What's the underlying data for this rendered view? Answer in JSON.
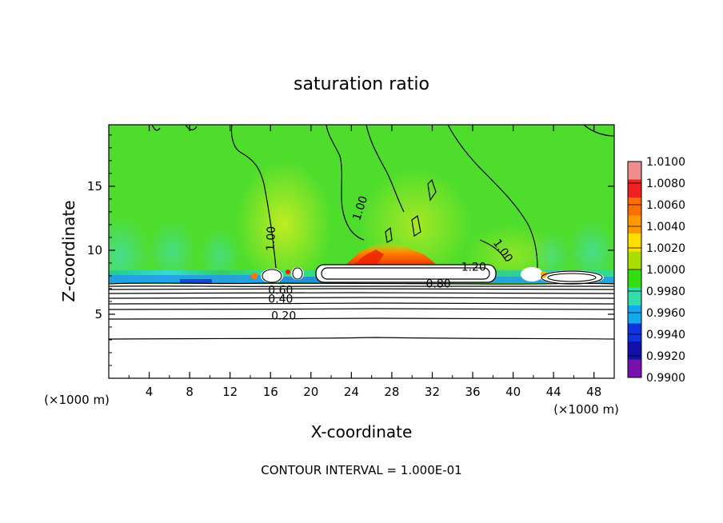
{
  "chart_data": {
    "type": "heatmap",
    "title": "saturation ratio",
    "xlabel": "X-coordinate",
    "ylabel": "Z-coordinate",
    "x_units_left": "(×1000 m)",
    "x_units_right": "(×1000 m)",
    "footer": "CONTOUR INTERVAL = 1.000E-01",
    "xlim": [
      0,
      50
    ],
    "ylim": [
      0,
      19.8
    ],
    "x_ticks": [
      4,
      8,
      12,
      16,
      20,
      24,
      28,
      32,
      36,
      40,
      44,
      48
    ],
    "y_ticks": [
      5,
      10,
      15
    ],
    "colorbar": {
      "ticks": [
        "1.0100",
        "1.0080",
        "1.0060",
        "1.0040",
        "1.0020",
        "1.0000",
        "0.9980",
        "0.9960",
        "0.9940",
        "0.9920",
        "0.9900"
      ],
      "colors": [
        "#f08c8c",
        "#ee2222",
        "#ff6e00",
        "#ff9900",
        "#ffdd00",
        "#aadd00",
        "#33dd11",
        "#33ddaa",
        "#11aaee",
        "#1133dd",
        "#1111aa",
        "#7711aa"
      ]
    },
    "contour_labels": [
      {
        "text": "1.00",
        "x": 16.4,
        "y": 10.9,
        "rot": -88
      },
      {
        "text": "1.00",
        "x": 25.2,
        "y": 13.2,
        "rot": -72
      },
      {
        "text": "1.00",
        "x": 38.7,
        "y": 9.8,
        "rot": 55
      },
      {
        "text": "1.20",
        "x": 36.1,
        "y": 8.4,
        "rot": 0
      },
      {
        "text": "0.80",
        "x": 32.6,
        "y": 7.1,
        "rot": 0
      },
      {
        "text": "0.60",
        "x": 17.0,
        "y": 6.6,
        "rot": 0
      },
      {
        "text": "0.40",
        "x": 17.0,
        "y": 5.9,
        "rot": 0
      },
      {
        "text": "0.20",
        "x": 17.3,
        "y": 4.6,
        "rot": 0
      }
    ],
    "domain_range": [
      0.99,
      1.01
    ]
  }
}
